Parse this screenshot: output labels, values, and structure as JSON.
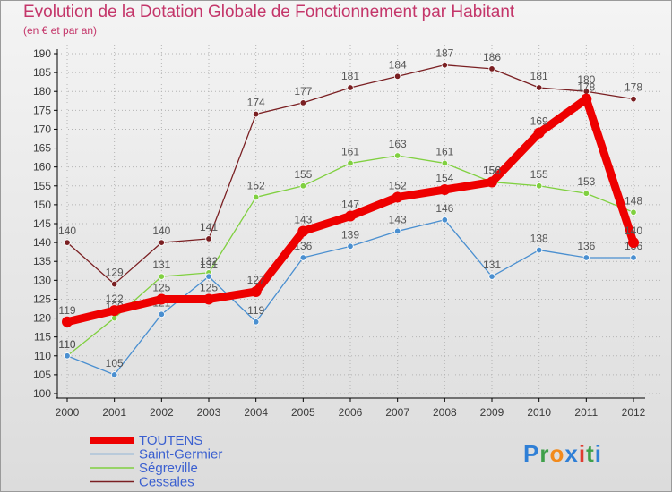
{
  "chart_data": {
    "type": "line",
    "title": "Evolution de la Dotation Globale de Fonctionnement par Habitant",
    "subtitle": "(en € et par an)",
    "xlabel": "",
    "ylabel": "",
    "ylim": [
      100,
      190
    ],
    "ytick_step": 5,
    "x": [
      "2000",
      "2001",
      "2002",
      "2003",
      "2004",
      "2005",
      "2006",
      "2007",
      "2008",
      "2009",
      "2010",
      "2011",
      "2012"
    ],
    "series": [
      {
        "name": "Cessales",
        "color": "#7a1f22",
        "values": [
          140,
          129,
          140,
          141,
          174,
          177,
          181,
          184,
          187,
          186,
          181,
          180,
          178
        ]
      },
      {
        "name": "Ségreville",
        "color": "#80d040",
        "values": [
          110,
          120,
          131,
          132,
          152,
          155,
          161,
          163,
          161,
          156,
          155,
          153,
          148
        ]
      },
      {
        "name": "Saint-Germier",
        "color": "#4a8fd0",
        "values": [
          110,
          105,
          121,
          131,
          119,
          136,
          139,
          143,
          146,
          131,
          138,
          136,
          136
        ]
      },
      {
        "name": "TOUTENS",
        "color": "#ee0000",
        "values": [
          119,
          122,
          125,
          125,
          127,
          143,
          147,
          152,
          154,
          156,
          169,
          178,
          140
        ]
      }
    ],
    "legend_order": [
      "TOUTENS",
      "Saint-Germier",
      "Ségreville",
      "Cessales"
    ]
  },
  "logo": {
    "letters": [
      "P",
      "r",
      "o",
      "x",
      "i",
      "t",
      "i"
    ],
    "colors": [
      "#2f7fd6",
      "#3fa04a",
      "#f28a1c",
      "#2f7fd6",
      "#e03c31",
      "#3fa04a",
      "#2f7fd6"
    ]
  }
}
